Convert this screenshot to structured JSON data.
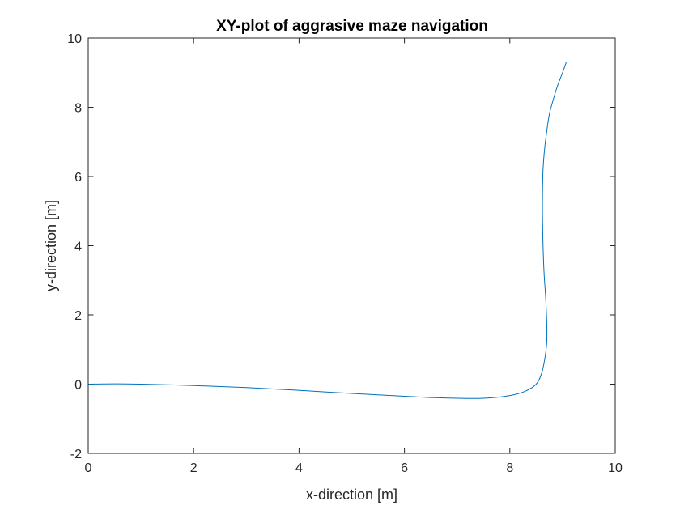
{
  "chart_data": {
    "type": "line",
    "title": "XY-plot of aggrasive maze navigation",
    "xlabel": "x-direction [m]",
    "ylabel": "y-direction [m]",
    "xlim": [
      0,
      10
    ],
    "ylim": [
      -2,
      10
    ],
    "xticks": [
      "0",
      "2",
      "4",
      "6",
      "8",
      "10"
    ],
    "yticks": [
      "-2",
      "0",
      "2",
      "4",
      "6",
      "8",
      "10"
    ],
    "grid": false,
    "line_color": "#0072BD",
    "series": [
      {
        "x": [
          0,
          0.5,
          1,
          2,
          3,
          4,
          5,
          6,
          6.5,
          7,
          7.5,
          8,
          8.3,
          8.5,
          8.6,
          8.66,
          8.7,
          8.7,
          8.68,
          8.65,
          8.63,
          8.62,
          8.62,
          8.63,
          8.66,
          8.7,
          8.75,
          8.82,
          8.9,
          9.0,
          9.07
        ],
        "y": [
          0,
          0.01,
          0,
          -0.04,
          -0.1,
          -0.18,
          -0.27,
          -0.35,
          -0.39,
          -0.41,
          -0.41,
          -0.33,
          -0.2,
          0,
          0.3,
          0.7,
          1.2,
          1.8,
          2.5,
          3.2,
          4.0,
          4.8,
          5.5,
          6.2,
          6.8,
          7.3,
          7.8,
          8.2,
          8.6,
          9.0,
          9.3
        ]
      }
    ]
  }
}
